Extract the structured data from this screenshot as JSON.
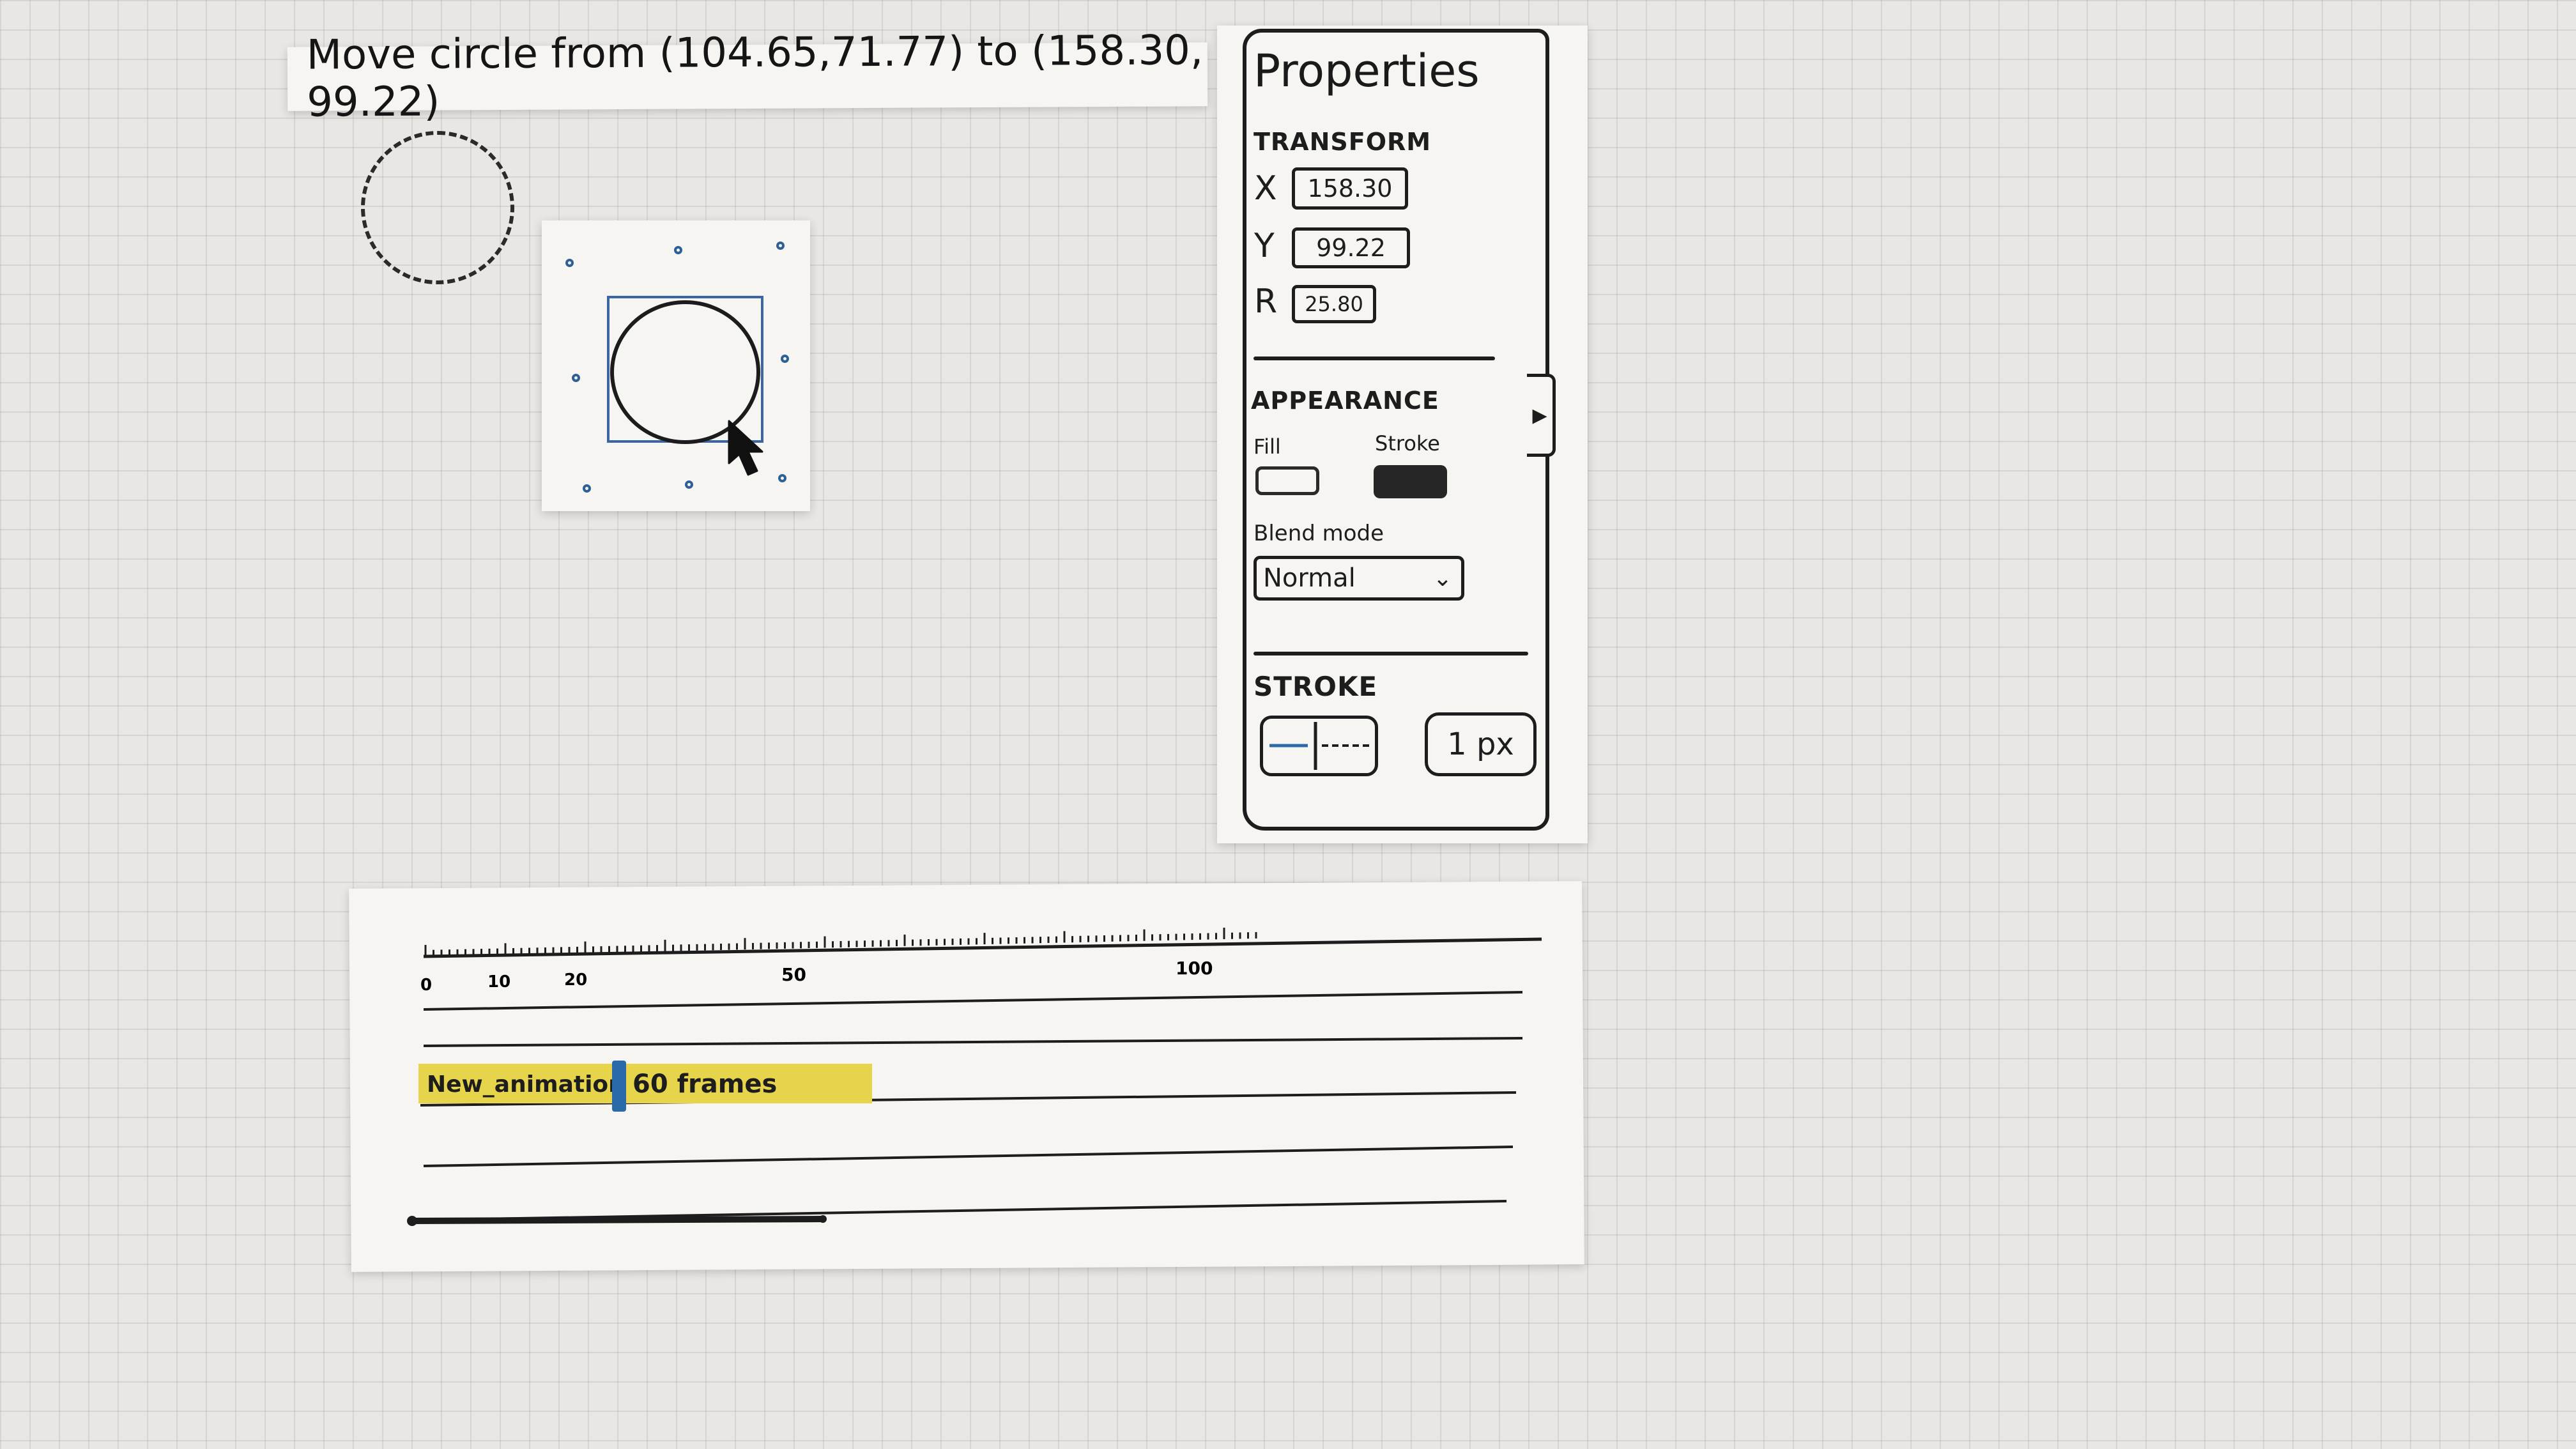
{
  "task": {
    "instruction": "Move circle from (104.65,71.77) to (158.30, 99.22)"
  },
  "properties": {
    "title": "Properties",
    "transform": {
      "label": "TRANSFORM",
      "x_label": "X",
      "x_value": "158.30",
      "y_label": "Y",
      "y_value": "99.22",
      "r_label": "R",
      "r_value": "25.80"
    },
    "appearance": {
      "label": "APPEARANCE",
      "fill_label": "Fill",
      "stroke_label": "Stroke",
      "blend_mode_label": "Blend mode",
      "blend_mode_value": "Normal"
    },
    "stroke": {
      "label": "STROKE",
      "width_value": "1 px"
    }
  },
  "timeline": {
    "ruler_labels": [
      "0",
      "10",
      "20",
      "50",
      "100"
    ],
    "clip": {
      "name": "New_animation",
      "length": "60 frames"
    }
  },
  "colors": {
    "clip_highlight": "#e6d44a",
    "selection_blue": "#3b66a3",
    "ink": "#1d1d1d"
  },
  "icons": {
    "cursor": "arrow-cursor-icon",
    "chevron": "chevron-down-icon",
    "collapse": "triangle-right-icon"
  }
}
